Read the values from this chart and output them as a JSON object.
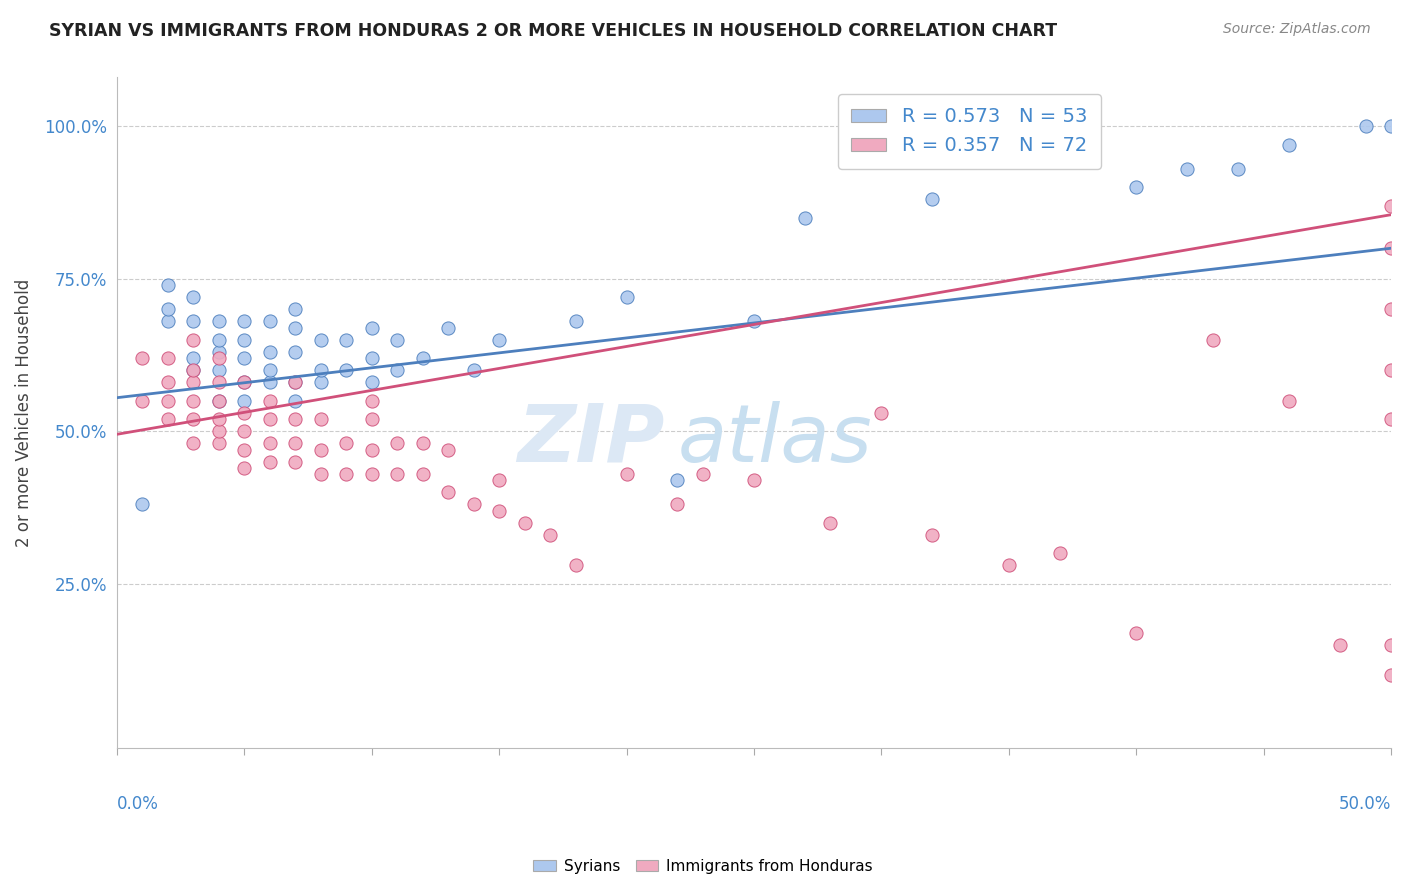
{
  "title": "SYRIAN VS IMMIGRANTS FROM HONDURAS 2 OR MORE VEHICLES IN HOUSEHOLD CORRELATION CHART",
  "source": "Source: ZipAtlas.com",
  "ylabel": "2 or more Vehicles in Household",
  "yticks": [
    "25.0%",
    "50.0%",
    "75.0%",
    "100.0%"
  ],
  "ytick_vals": [
    0.25,
    0.5,
    0.75,
    1.0
  ],
  "xmin": 0.0,
  "xmax": 0.5,
  "ymin": -0.02,
  "ymax": 1.08,
  "blue_color": "#adc8ee",
  "pink_color": "#f0aac0",
  "blue_line_color": "#4d7fbd",
  "pink_line_color": "#d0507a",
  "watermark_zip": "ZIP",
  "watermark_atlas": "atlas",
  "blue_dots_x": [
    0.01,
    0.02,
    0.02,
    0.02,
    0.03,
    0.03,
    0.03,
    0.03,
    0.04,
    0.04,
    0.04,
    0.04,
    0.04,
    0.05,
    0.05,
    0.05,
    0.05,
    0.05,
    0.06,
    0.06,
    0.06,
    0.06,
    0.07,
    0.07,
    0.07,
    0.07,
    0.07,
    0.08,
    0.08,
    0.08,
    0.09,
    0.09,
    0.1,
    0.1,
    0.1,
    0.11,
    0.11,
    0.12,
    0.13,
    0.14,
    0.15,
    0.18,
    0.2,
    0.22,
    0.25,
    0.27,
    0.32,
    0.4,
    0.42,
    0.44,
    0.46,
    0.49,
    0.5
  ],
  "blue_dots_y": [
    0.38,
    0.68,
    0.7,
    0.74,
    0.6,
    0.62,
    0.68,
    0.72,
    0.55,
    0.6,
    0.63,
    0.65,
    0.68,
    0.55,
    0.58,
    0.62,
    0.65,
    0.68,
    0.58,
    0.6,
    0.63,
    0.68,
    0.55,
    0.58,
    0.63,
    0.67,
    0.7,
    0.58,
    0.6,
    0.65,
    0.6,
    0.65,
    0.58,
    0.62,
    0.67,
    0.6,
    0.65,
    0.62,
    0.67,
    0.6,
    0.65,
    0.68,
    0.72,
    0.42,
    0.68,
    0.85,
    0.88,
    0.9,
    0.93,
    0.93,
    0.97,
    1.0,
    1.0
  ],
  "pink_dots_x": [
    0.01,
    0.01,
    0.02,
    0.02,
    0.02,
    0.02,
    0.03,
    0.03,
    0.03,
    0.03,
    0.03,
    0.03,
    0.04,
    0.04,
    0.04,
    0.04,
    0.04,
    0.04,
    0.05,
    0.05,
    0.05,
    0.05,
    0.05,
    0.06,
    0.06,
    0.06,
    0.06,
    0.07,
    0.07,
    0.07,
    0.07,
    0.08,
    0.08,
    0.08,
    0.09,
    0.09,
    0.1,
    0.1,
    0.1,
    0.1,
    0.11,
    0.11,
    0.12,
    0.12,
    0.13,
    0.13,
    0.14,
    0.15,
    0.15,
    0.16,
    0.17,
    0.18,
    0.2,
    0.22,
    0.23,
    0.25,
    0.28,
    0.3,
    0.32,
    0.35,
    0.37,
    0.4,
    0.43,
    0.46,
    0.48,
    0.5,
    0.5,
    0.5,
    0.5,
    0.5,
    0.5,
    0.5
  ],
  "pink_dots_y": [
    0.55,
    0.62,
    0.52,
    0.55,
    0.58,
    0.62,
    0.48,
    0.52,
    0.55,
    0.58,
    0.6,
    0.65,
    0.48,
    0.5,
    0.52,
    0.55,
    0.58,
    0.62,
    0.44,
    0.47,
    0.5,
    0.53,
    0.58,
    0.45,
    0.48,
    0.52,
    0.55,
    0.45,
    0.48,
    0.52,
    0.58,
    0.43,
    0.47,
    0.52,
    0.43,
    0.48,
    0.43,
    0.47,
    0.52,
    0.55,
    0.43,
    0.48,
    0.43,
    0.48,
    0.4,
    0.47,
    0.38,
    0.37,
    0.42,
    0.35,
    0.33,
    0.28,
    0.43,
    0.38,
    0.43,
    0.42,
    0.35,
    0.53,
    0.33,
    0.28,
    0.3,
    0.17,
    0.65,
    0.55,
    0.15,
    0.6,
    0.7,
    0.8,
    0.87,
    0.52,
    0.1,
    0.15
  ],
  "blue_trendline_x0": 0.0,
  "blue_trendline_x1": 0.5,
  "blue_trendline_y0": 0.555,
  "blue_trendline_y1": 0.8,
  "pink_trendline_x0": 0.0,
  "pink_trendline_x1": 0.5,
  "pink_trendline_y0": 0.495,
  "pink_trendline_y1": 0.855
}
